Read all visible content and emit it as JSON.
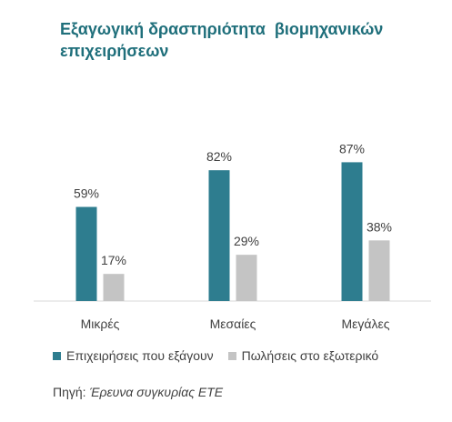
{
  "title": "Εξαγωγική δραστηριότητα  βιομηχανικών επιχειρήσεων",
  "chart_data": {
    "type": "bar",
    "categories": [
      "Μικρές",
      "Μεσαίες",
      "Μεγάλες"
    ],
    "series": [
      {
        "name": "Επιχειρήσεις που εξάγουν",
        "values": [
          59,
          82,
          87
        ],
        "labels": [
          "59%",
          "82%",
          "87%"
        ],
        "color": "#2e7d8f"
      },
      {
        "name": "Πωλήσεις στο εξωτερικό",
        "values": [
          17,
          29,
          38
        ],
        "labels": [
          "17%",
          "29%",
          "38%"
        ],
        "color": "#c4c4c4"
      }
    ],
    "ylim": [
      0,
      100
    ],
    "grid": false,
    "legend_position": "bottom"
  },
  "source": {
    "prefix": "Πηγή: ",
    "text": "Έρευνα συγκυρίας ΕΤΕ"
  }
}
